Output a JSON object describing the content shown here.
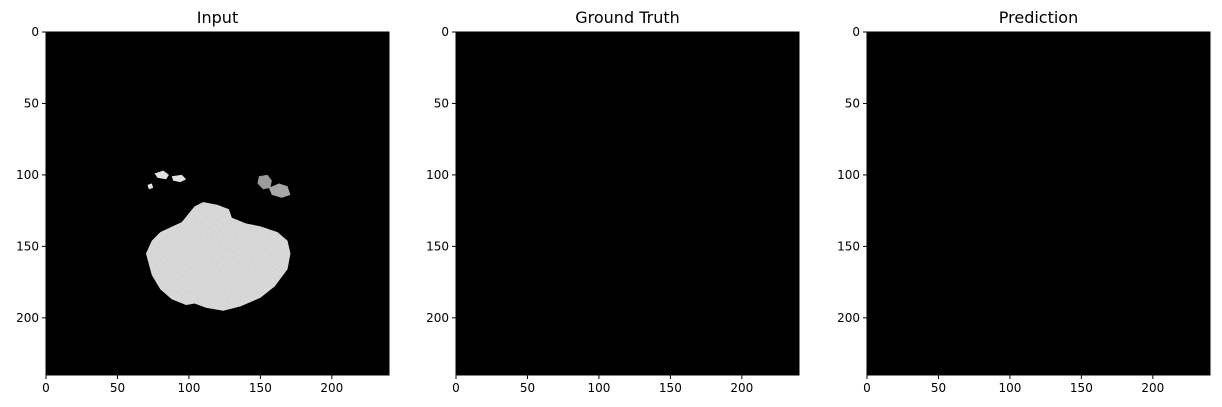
{
  "chart_data": [
    {
      "type": "heatmap",
      "title": "Input",
      "colormap": "gray",
      "background_color": "#000000",
      "xlim": [
        0,
        240
      ],
      "ylim": [
        240,
        0
      ],
      "xticks": [
        0,
        50,
        100,
        150,
        200
      ],
      "yticks": [
        0,
        50,
        100,
        150,
        200
      ],
      "bright_regions": [
        {
          "label": "central mass",
          "points": [
            [
              70,
              155
            ],
            [
              74,
              146
            ],
            [
              80,
              140
            ],
            [
              95,
              133
            ],
            [
              104,
              122
            ],
            [
              110,
              119
            ],
            [
              120,
              121
            ],
            [
              128,
              124
            ],
            [
              130,
              130
            ],
            [
              140,
              134
            ],
            [
              150,
              136
            ],
            [
              162,
              140
            ],
            [
              169,
              146
            ],
            [
              171,
              155
            ],
            [
              169,
              166
            ],
            [
              160,
              178
            ],
            [
              150,
              186
            ],
            [
              136,
              192
            ],
            [
              124,
              195
            ],
            [
              112,
              193
            ],
            [
              104,
              190
            ],
            [
              98,
              191
            ],
            [
              88,
              187
            ],
            [
              80,
              180
            ],
            [
              74,
              170
            ]
          ],
          "intensity": 0.9
        },
        {
          "label": "small spot left",
          "points": [
            [
              76,
              99
            ],
            [
              82,
              97
            ],
            [
              86,
              100
            ],
            [
              84,
              103
            ],
            [
              78,
              102
            ]
          ],
          "intensity": 0.95
        },
        {
          "label": "small spot left 2",
          "points": [
            [
              88,
              101
            ],
            [
              95,
              100
            ],
            [
              98,
              103
            ],
            [
              94,
              105
            ],
            [
              89,
              104
            ]
          ],
          "intensity": 0.95
        },
        {
          "label": "small spot left 3",
          "points": [
            [
              71,
              107
            ],
            [
              74,
              106
            ],
            [
              75,
              109
            ],
            [
              72,
              110
            ]
          ],
          "intensity": 0.95
        },
        {
          "label": "spot right",
          "points": [
            [
              149,
              101
            ],
            [
              155,
              100
            ],
            [
              158,
              104
            ],
            [
              157,
              109
            ],
            [
              152,
              110
            ],
            [
              148,
              106
            ]
          ],
          "intensity": 0.65
        },
        {
          "label": "spot right 2",
          "points": [
            [
              156,
              109
            ],
            [
              163,
              106
            ],
            [
              169,
              108
            ],
            [
              171,
              114
            ],
            [
              165,
              116
            ],
            [
              158,
              114
            ]
          ],
          "intensity": 0.7
        }
      ]
    },
    {
      "type": "heatmap",
      "title": "Ground Truth",
      "colormap": "gray",
      "background_color": "#000000",
      "xlim": [
        0,
        240
      ],
      "ylim": [
        240,
        0
      ],
      "xticks": [
        0,
        50,
        100,
        150,
        200
      ],
      "yticks": [
        0,
        50,
        100,
        150,
        200
      ],
      "bright_regions": []
    },
    {
      "type": "heatmap",
      "title": "Prediction",
      "colormap": "gray",
      "background_color": "#000000",
      "xlim": [
        0,
        240
      ],
      "ylim": [
        240,
        0
      ],
      "xticks": [
        0,
        50,
        100,
        150,
        200
      ],
      "yticks": [
        0,
        50,
        100,
        150,
        200
      ],
      "bright_regions": []
    }
  ]
}
